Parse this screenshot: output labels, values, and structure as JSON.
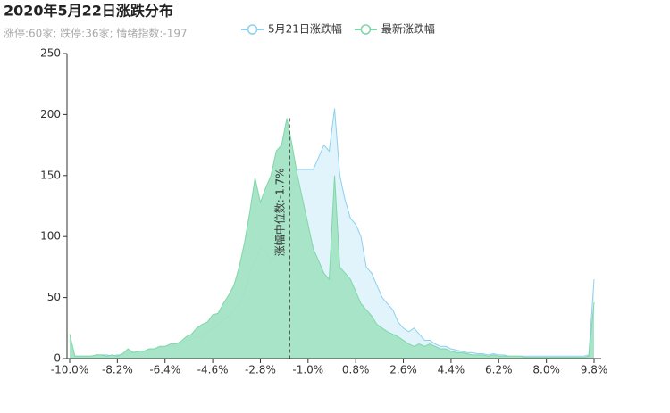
{
  "chart_data": {
    "type": "area",
    "title": "2020年5月22日涨跌分布",
    "subtitle": "涨停:60家; 跌停:36家; 情绪指数:-197",
    "x": [
      -10,
      -9.8,
      -9.6,
      -9.4,
      -9.2,
      -9,
      -8.8,
      -8.6,
      -8.4,
      -8.2,
      -8,
      -7.8,
      -7.6,
      -7.4,
      -7.2,
      -7,
      -6.8,
      -6.6,
      -6.4,
      -6.2,
      -6,
      -5.8,
      -5.6,
      -5.4,
      -5.2,
      -5,
      -4.8,
      -4.6,
      -4.4,
      -4.2,
      -4,
      -3.8,
      -3.6,
      -3.4,
      -3.2,
      -3,
      -2.8,
      -2.6,
      -2.4,
      -2.2,
      -2,
      -1.8,
      -1.6,
      -1.4,
      -1.2,
      -1,
      -0.8,
      -0.6,
      -0.4,
      -0.2,
      0,
      0.2,
      0.4,
      0.6,
      0.8,
      1,
      1.2,
      1.4,
      1.6,
      1.8,
      2,
      2.2,
      2.4,
      2.6,
      2.8,
      3,
      3.2,
      3.4,
      3.6,
      3.8,
      4,
      4.2,
      4.4,
      4.6,
      4.8,
      5,
      5.2,
      5.4,
      5.6,
      5.8,
      6,
      6.2,
      6.4,
      6.6,
      6.8,
      7,
      7.2,
      7.4,
      7.6,
      7.8,
      8,
      8.2,
      8.4,
      8.6,
      8.8,
      9,
      9.2,
      9.4,
      9.6,
      9.8
    ],
    "series": [
      {
        "name": "5月21日涨跌幅",
        "color": "#8dd0ee",
        "fill": "#dff3fb",
        "values": [
          15,
          2,
          2,
          2,
          2,
          3,
          3,
          3,
          2,
          3,
          3,
          4,
          5,
          6,
          6,
          8,
          8,
          9,
          10,
          10,
          10,
          12,
          14,
          16,
          18,
          18,
          22,
          25,
          28,
          32,
          35,
          40,
          45,
          55,
          70,
          80,
          90,
          88,
          80,
          85,
          100,
          120,
          140,
          155,
          155,
          155,
          155,
          165,
          175,
          170,
          205,
          150,
          130,
          115,
          110,
          100,
          75,
          70,
          60,
          50,
          45,
          40,
          30,
          25,
          22,
          25,
          20,
          15,
          15,
          12,
          10,
          10,
          8,
          7,
          6,
          5,
          5,
          4,
          4,
          3,
          4,
          3,
          3,
          2,
          2,
          2,
          2,
          2,
          2,
          2,
          2,
          2,
          2,
          2,
          2,
          2,
          2,
          2,
          3,
          65
        ]
      },
      {
        "name": "最新涨跌幅",
        "color": "#7fd7a8",
        "fill": "#a3e3c5",
        "values": [
          20,
          2,
          2,
          2,
          2,
          3,
          3,
          2,
          3,
          2,
          4,
          8,
          5,
          6,
          6,
          8,
          8,
          10,
          10,
          12,
          12,
          14,
          18,
          20,
          25,
          28,
          30,
          36,
          37,
          45,
          52,
          60,
          75,
          95,
          120,
          148,
          128,
          140,
          150,
          170,
          175,
          197,
          175,
          150,
          130,
          110,
          90,
          80,
          70,
          65,
          150,
          75,
          70,
          65,
          55,
          45,
          40,
          35,
          28,
          25,
          22,
          20,
          18,
          15,
          12,
          10,
          12,
          10,
          12,
          10,
          8,
          8,
          6,
          5,
          5,
          4,
          3,
          3,
          3,
          2,
          3,
          2,
          2,
          2,
          2,
          2,
          1,
          1,
          1,
          1,
          1,
          1,
          1,
          1,
          1,
          1,
          1,
          1,
          2,
          46
        ]
      }
    ],
    "median": {
      "value": -1.7,
      "label": "涨幅中位数:-1.7%"
    },
    "xlim": [
      -10,
      9.8
    ],
    "xticks": [
      {
        "value": -10,
        "label": "-10.0%"
      },
      {
        "value": -8.2,
        "label": "-8.2%"
      },
      {
        "value": -6.4,
        "label": "-6.4%"
      },
      {
        "value": -4.6,
        "label": "-4.6%"
      },
      {
        "value": -2.8,
        "label": "-2.8%"
      },
      {
        "value": -1,
        "label": "-1.0%"
      },
      {
        "value": 0.8,
        "label": "0.8%"
      },
      {
        "value": 2.6,
        "label": "2.6%"
      },
      {
        "value": 4.4,
        "label": "4.4%"
      },
      {
        "value": 6.2,
        "label": "6.2%"
      },
      {
        "value": 8,
        "label": "8.0%"
      },
      {
        "value": 9.8,
        "label": "9.8%"
      }
    ],
    "ylim": [
      0,
      250
    ],
    "yticks": [
      0,
      50,
      100,
      150,
      200,
      250
    ],
    "grid": false,
    "legend": "top"
  }
}
